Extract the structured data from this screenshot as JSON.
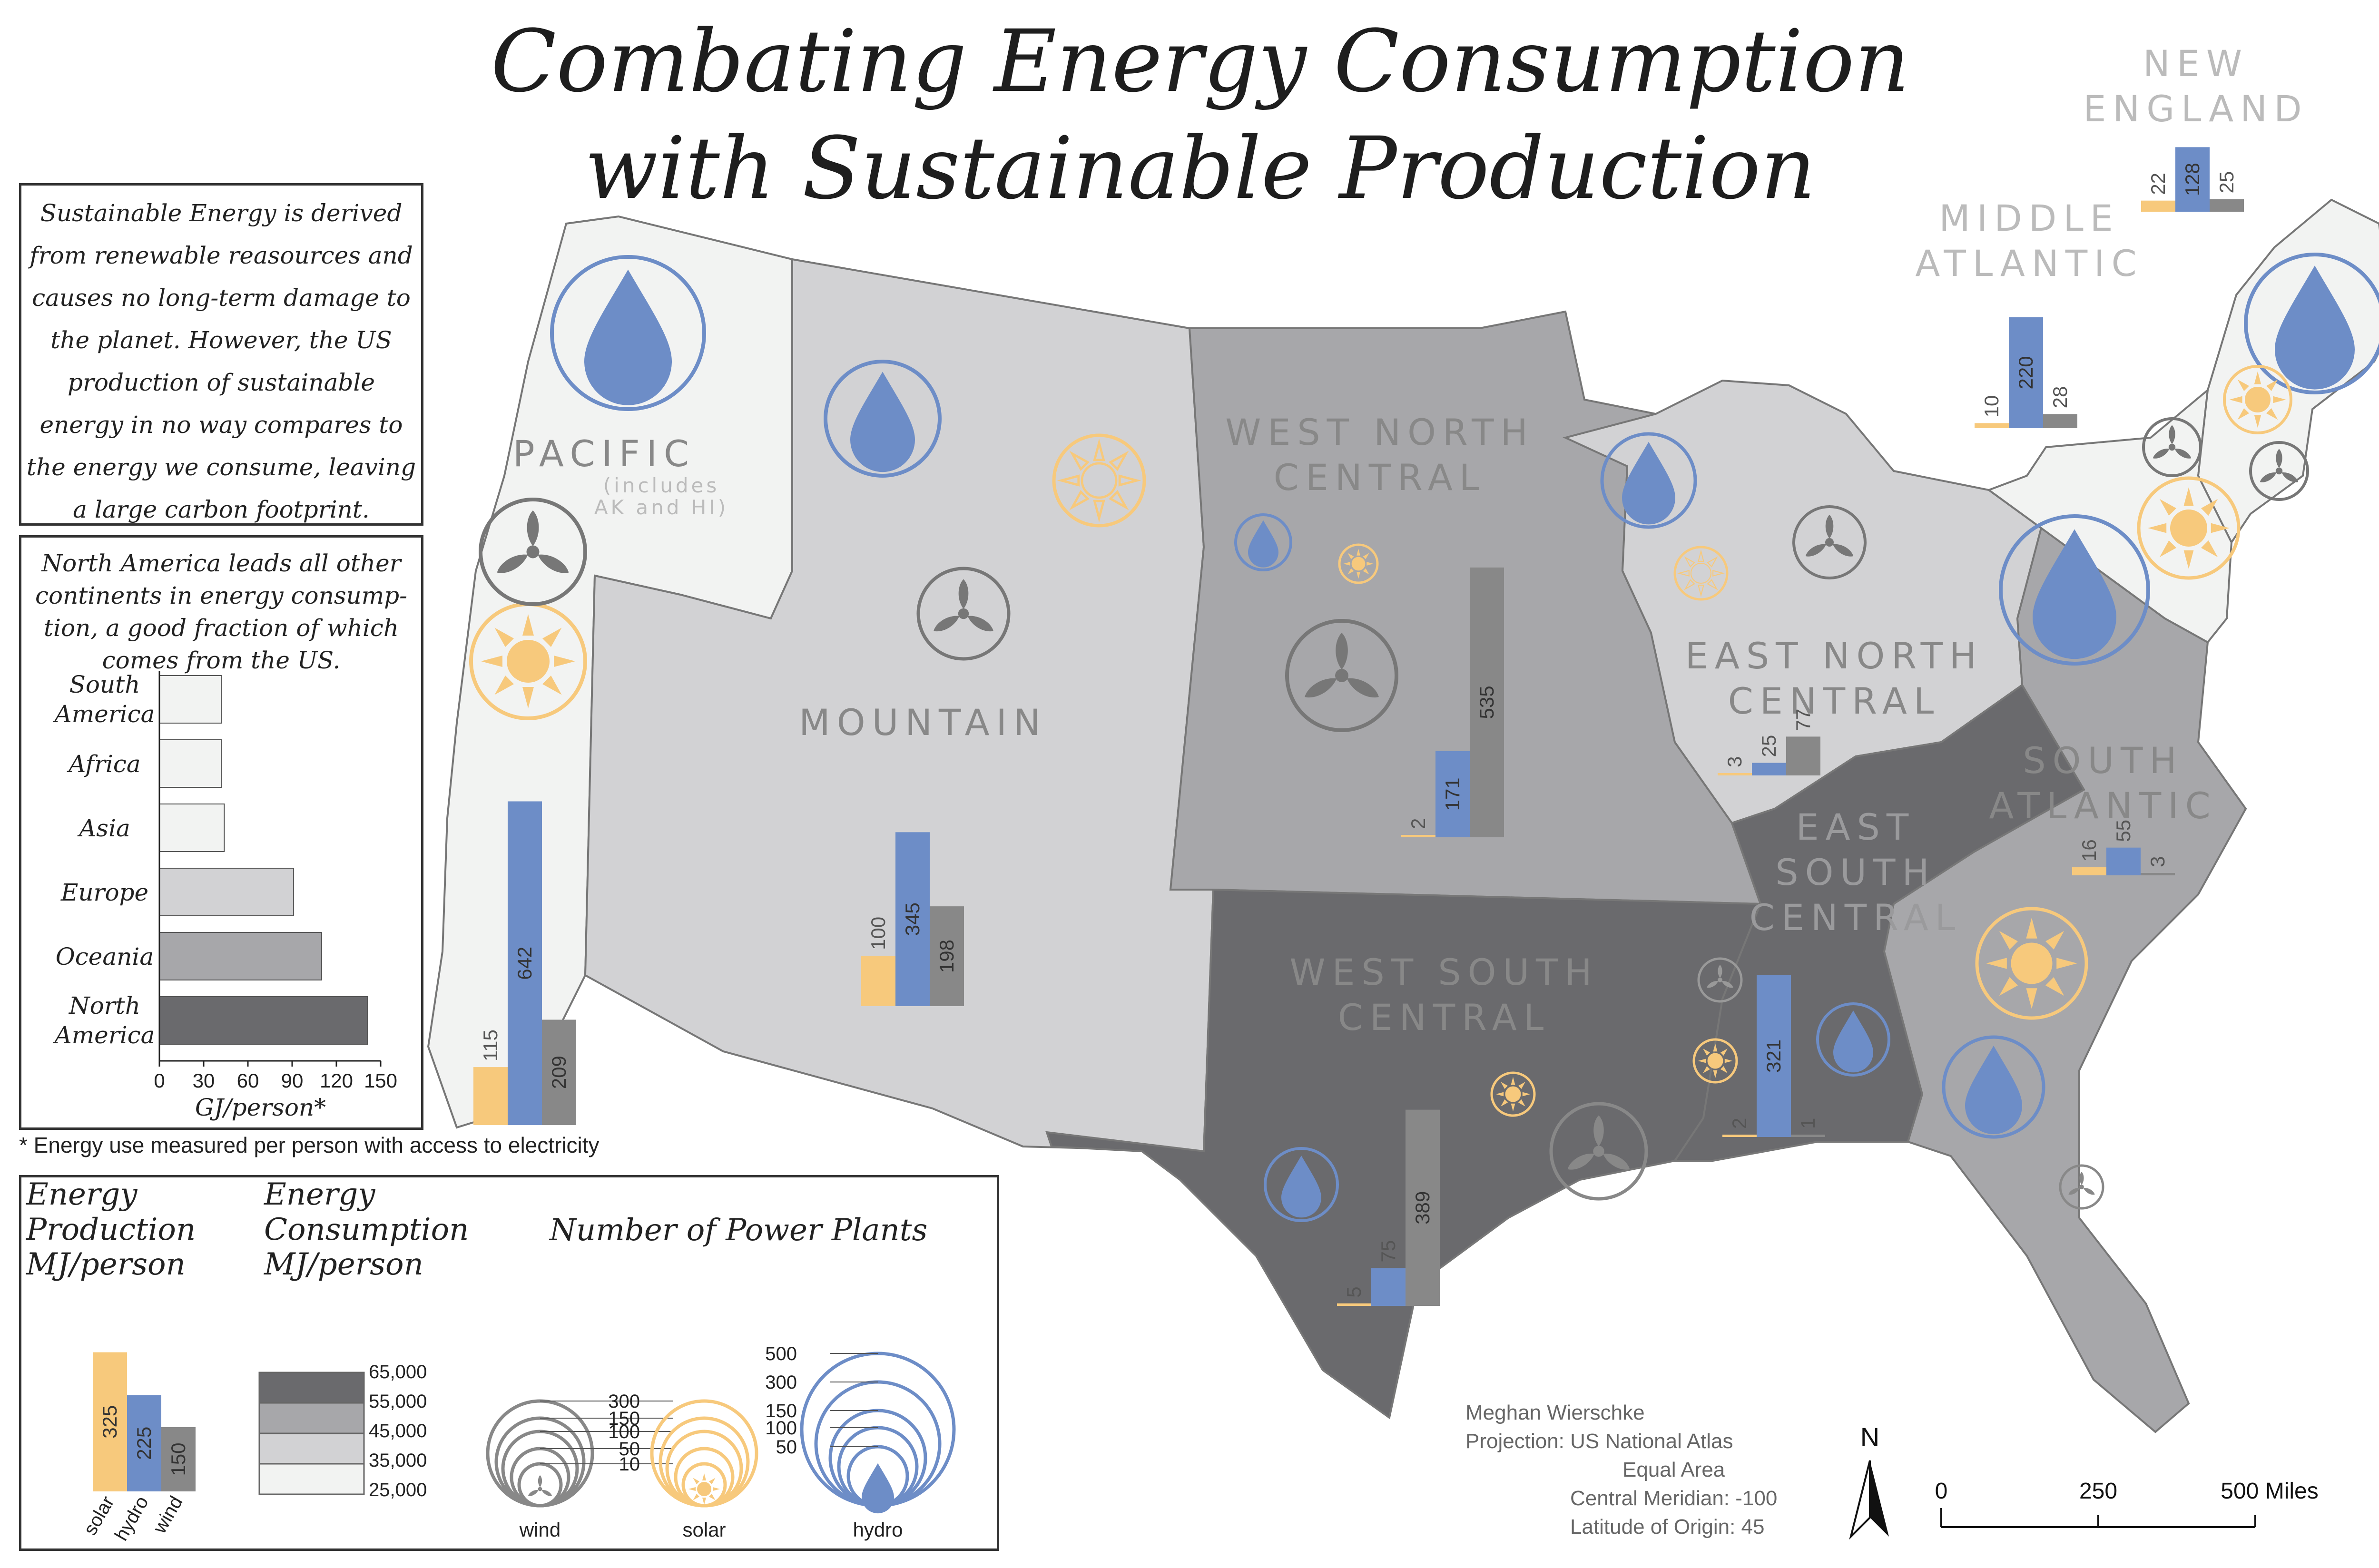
{
  "title": {
    "line1": "Combating Energy Consumption",
    "line2": "with Sustainable Production"
  },
  "intro_text": [
    "Sustainable Energy is derived",
    "from renewable reasources and",
    "causes no long-term damage to",
    "the planet. However, the US",
    "production of sustainable",
    "energy in no way compares to",
    "the energy we consume, leaving",
    "a large carbon footprint."
  ],
  "continent_box": {
    "text": [
      "North America leads all other",
      "continents in energy consump-",
      "tion, a good fraction of which",
      "comes from the US."
    ],
    "axis_label": "GJ/person*",
    "ticks": [
      "0",
      "30",
      "60",
      "90",
      "120",
      "150"
    ],
    "footnote": "* Energy use measured per person with access to electricity"
  },
  "chart_data": {
    "type": "bar",
    "orientation": "horizontal",
    "categories": [
      "South America",
      "Africa",
      "Asia",
      "Europe",
      "Oceania",
      "North America"
    ],
    "values": [
      42,
      42,
      44,
      91,
      110,
      141
    ],
    "xlabel": "GJ/person*",
    "xlim": [
      0,
      150
    ],
    "colors": [
      "#f2f3f2",
      "#f2f3f2",
      "#f2f3f2",
      "#d2d2d4",
      "#a7a7aa",
      "#6a6a6d"
    ]
  },
  "colors": {
    "solar": "#f7c97c",
    "hydro": "#6d8dc7",
    "wind": "#888888",
    "pacific": "#f2f3f2",
    "mountain": "#d2d2d4",
    "wnc": "#a7a7aa",
    "enc": "#d2d2d4",
    "wsc": "#6a6a6d",
    "esc": "#6a6a6d",
    "sa": "#a7a7aa",
    "ne": "#f2f3f2"
  },
  "regions": [
    {
      "id": "pacific",
      "name": [
        "PACIFIC"
      ],
      "note": [
        "(includes",
        "AK and HI)"
      ],
      "solar": 115,
      "hydro": 642,
      "wind": 209
    },
    {
      "id": "mountain",
      "name": [
        "MOUNTAIN"
      ],
      "solar": 100,
      "hydro": 345,
      "wind": 198
    },
    {
      "id": "wnc",
      "name": [
        "WEST NORTH",
        "CENTRAL"
      ],
      "solar": 2,
      "hydro": 171,
      "wind": 535
    },
    {
      "id": "enc",
      "name": [
        "EAST NORTH",
        "CENTRAL"
      ],
      "solar": 3,
      "hydro": 25,
      "wind": 77
    },
    {
      "id": "wsc",
      "name": [
        "WEST SOUTH",
        "CENTRAL"
      ],
      "solar": 5,
      "hydro": 75,
      "wind": 389
    },
    {
      "id": "esc",
      "name": [
        "EAST",
        "SOUTH",
        "CENTRAL"
      ],
      "solar": 2,
      "hydro": 321,
      "wind": 1
    },
    {
      "id": "sa",
      "name": [
        "SOUTH",
        "ATLANTIC"
      ],
      "solar": 16,
      "hydro": 55,
      "wind": 3
    },
    {
      "id": "ma",
      "name": [
        "MIDDLE",
        "ATLANTIC"
      ],
      "solar": 10,
      "hydro": 220,
      "wind": 28
    },
    {
      "id": "ne",
      "name": [
        "NEW",
        "ENGLAND"
      ],
      "solar": 22,
      "hydro": 128,
      "wind": 25
    }
  ],
  "legend": {
    "production_title": [
      "Energy",
      "Production",
      "MJ/person"
    ],
    "consumption_title": [
      "Energy",
      "Consumption",
      "MJ/person"
    ],
    "plants_title": "Number of Power Plants",
    "sample_bars": [
      {
        "label": "solar",
        "value": 325
      },
      {
        "label": "hydro",
        "value": 225
      },
      {
        "label": "wind",
        "value": 150
      }
    ],
    "consumption_classes": [
      "65,000",
      "55,000",
      "45,000",
      "35,000",
      "25,000"
    ],
    "wind_sizes": [
      "300",
      "150",
      "100",
      "50",
      "10"
    ],
    "hydro_sizes": [
      "500",
      "300",
      "150",
      "100",
      "50"
    ],
    "icon_labels": [
      "wind",
      "solar",
      "hydro"
    ]
  },
  "credits": {
    "author": "Meghan Wierschke",
    "projection": "Projection: US National Atlas",
    "projection2": "Equal Area",
    "meridian": "Central Meridian: -100",
    "latitude": "Latitude of Origin: 45"
  },
  "scale": {
    "north": "N",
    "ticks": [
      "0",
      "250",
      "500 Miles"
    ]
  }
}
